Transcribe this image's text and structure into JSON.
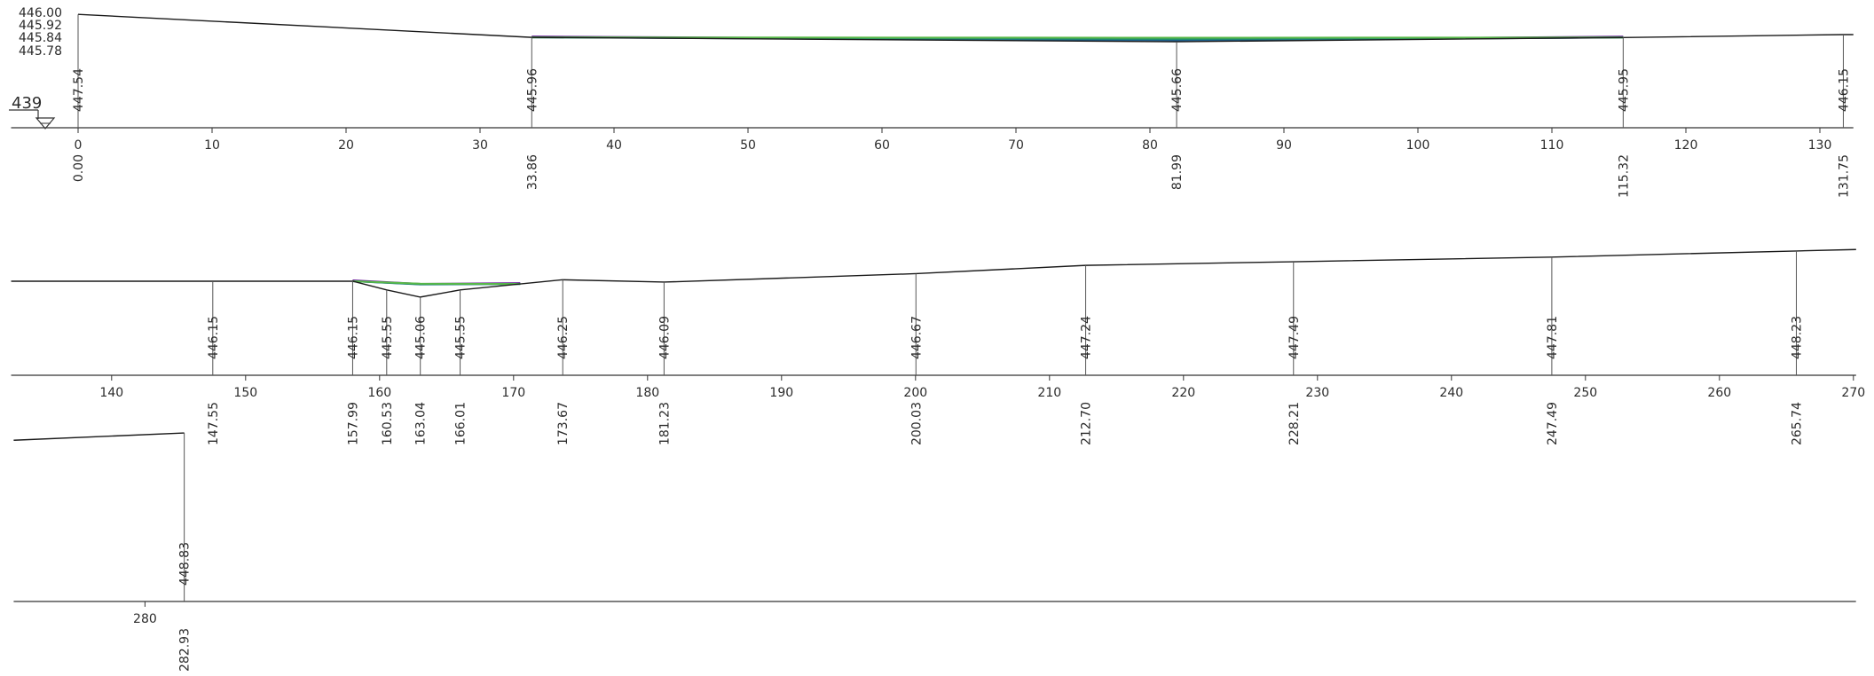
{
  "chart_data": {
    "type": "line",
    "title": "",
    "xlabel": "",
    "ylabel": "",
    "datum": {
      "label": "439"
    },
    "water_levels": [
      {
        "label": "446.00",
        "color": "#6a1b9a"
      },
      {
        "label": "445.92",
        "color": "#1e5f8c"
      },
      {
        "label": "445.84",
        "color": "#1f8f6e"
      },
      {
        "label": "445.78",
        "color": "#58b848"
      }
    ],
    "rows": [
      {
        "x_range": [
          -5,
          132.5
        ],
        "ticks": [
          0,
          10,
          20,
          30,
          40,
          50,
          60,
          70,
          80,
          90,
          100,
          110,
          120,
          130
        ],
        "profile": [
          {
            "x": 0.0,
            "y": 447.54,
            "label": true
          },
          {
            "x": 33.86,
            "y": 445.96,
            "label": true
          },
          {
            "x": 81.99,
            "y": 445.66,
            "label": true
          },
          {
            "x": 115.32,
            "y": 445.95,
            "label": true
          },
          {
            "x": 131.75,
            "y": 446.15,
            "label": true
          },
          {
            "x": 132.5,
            "y": 446.15,
            "label": false
          }
        ],
        "water_fill": {
          "from": 33.86,
          "to": 115.32
        }
      },
      {
        "x_range": [
          132.5,
          270.2
        ],
        "ticks": [
          140,
          150,
          160,
          170,
          180,
          190,
          200,
          210,
          220,
          230,
          240,
          250,
          260,
          270
        ],
        "profile": [
          {
            "x": 132.5,
            "y": 446.15,
            "label": false
          },
          {
            "x": 147.55,
            "y": 446.15,
            "label": true
          },
          {
            "x": 157.99,
            "y": 446.15,
            "label": true
          },
          {
            "x": 160.53,
            "y": 445.55,
            "label": true
          },
          {
            "x": 163.04,
            "y": 445.06,
            "label": true
          },
          {
            "x": 166.01,
            "y": 445.55,
            "label": true
          },
          {
            "x": 173.67,
            "y": 446.25,
            "label": true
          },
          {
            "x": 181.23,
            "y": 446.09,
            "label": true
          },
          {
            "x": 200.03,
            "y": 446.67,
            "label": true
          },
          {
            "x": 212.7,
            "y": 447.24,
            "label": true
          },
          {
            "x": 228.21,
            "y": 447.49,
            "label": true
          },
          {
            "x": 247.49,
            "y": 447.81,
            "label": true
          },
          {
            "x": 265.74,
            "y": 448.23,
            "label": true
          },
          {
            "x": 270.2,
            "y": 448.33,
            "label": false
          }
        ],
        "water_fill": {
          "from": 157.99,
          "to": 170.5
        }
      },
      {
        "x_range": [
          270.2,
          407.7
        ],
        "ticks": [
          280
        ],
        "profile": [
          {
            "x": 270.2,
            "y": 448.33,
            "label": false
          },
          {
            "x": 282.93,
            "y": 448.83,
            "label": true
          }
        ],
        "water_fill": null
      }
    ]
  }
}
